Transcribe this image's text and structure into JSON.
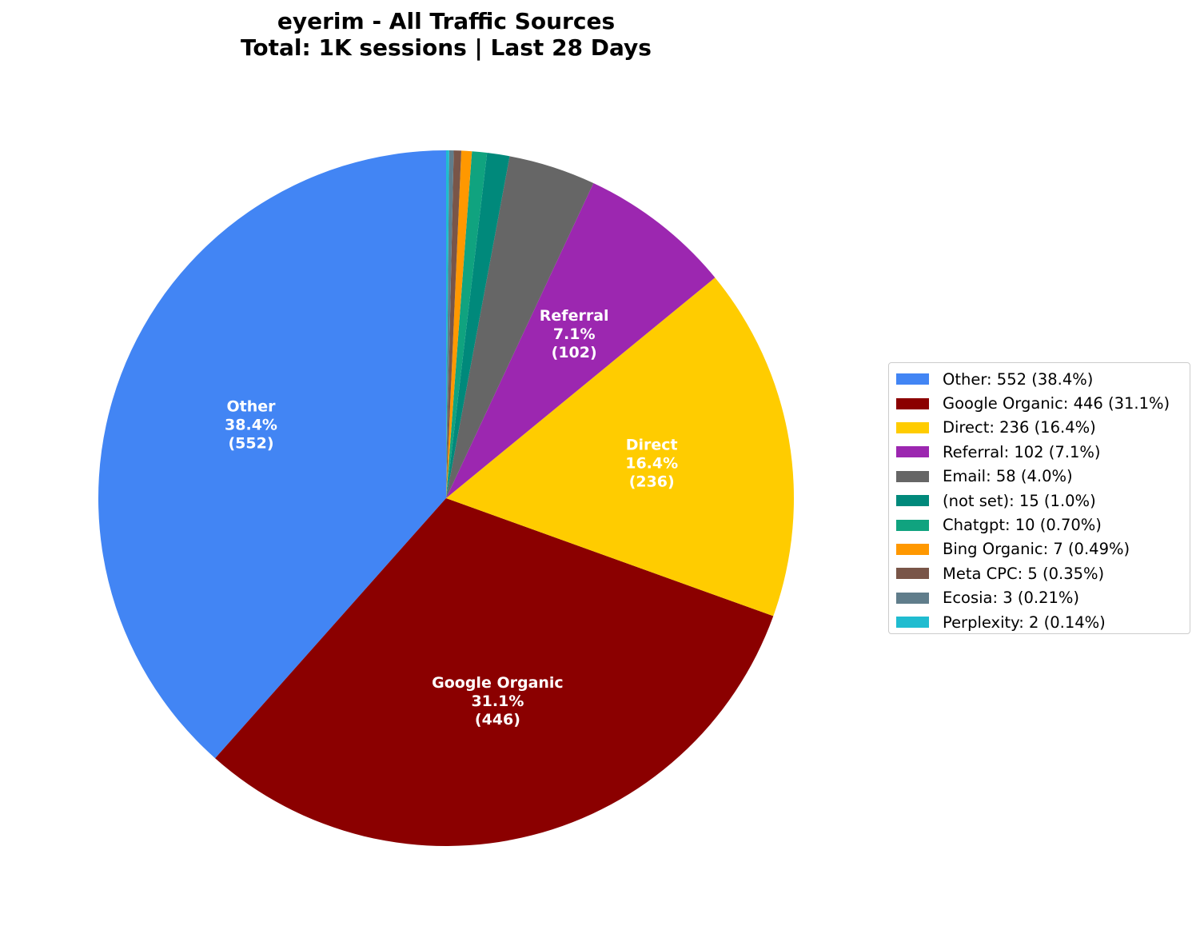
{
  "title": {
    "line1": "eyerim - All Traffic Sources",
    "line2": "Total: 1K sessions | Last 28 Days"
  },
  "chart_data": {
    "type": "pie",
    "title": "eyerim - All Traffic Sources\nTotal: 1K sessions | Last 28 Days",
    "start": "top",
    "direction": "counterclockwise",
    "slices": [
      {
        "name": "Other",
        "value": 552,
        "percent": "38.4%",
        "color": "#4285f4",
        "legend": "Other: 552 (38.4%)",
        "label": [
          "Other",
          "38.4%",
          "(552)"
        ]
      },
      {
        "name": "Google Organic",
        "value": 446,
        "percent": "31.1%",
        "color": "#8b0000",
        "legend": "Google Organic: 446 (31.1%)",
        "label": [
          "Google Organic",
          "31.1%",
          "(446)"
        ]
      },
      {
        "name": "Direct",
        "value": 236,
        "percent": "16.4%",
        "color": "#ffcc00",
        "legend": "Direct: 236 (16.4%)",
        "label": [
          "Direct",
          "16.4%",
          "(236)"
        ]
      },
      {
        "name": "Referral",
        "value": 102,
        "percent": "7.1%",
        "color": "#9c27b0",
        "legend": "Referral: 102 (7.1%)",
        "label": [
          "Referral",
          "7.1%",
          "(102)"
        ]
      },
      {
        "name": "Email",
        "value": 58,
        "percent": "4.0%",
        "color": "#666666",
        "legend": "Email: 58 (4.0%)",
        "label": null
      },
      {
        "name": "(not set)",
        "value": 15,
        "percent": "1.0%",
        "color": "#00897b",
        "legend": "(not set): 15 (1.0%)",
        "label": null
      },
      {
        "name": "Chatgpt",
        "value": 10,
        "percent": "0.70%",
        "color": "#10a37f",
        "legend": "Chatgpt: 10 (0.70%)",
        "label": null
      },
      {
        "name": "Bing Organic",
        "value": 7,
        "percent": "0.49%",
        "color": "#ff9800",
        "legend": "Bing Organic: 7 (0.49%)",
        "label": null
      },
      {
        "name": "Meta CPC",
        "value": 5,
        "percent": "0.35%",
        "color": "#795548",
        "legend": "Meta CPC: 5 (0.35%)",
        "label": null
      },
      {
        "name": "Ecosia",
        "value": 3,
        "percent": "0.21%",
        "color": "#607d8b",
        "legend": "Ecosia: 3 (0.21%)",
        "label": null
      },
      {
        "name": "Perplexity",
        "value": 2,
        "percent": "0.14%",
        "color": "#20bcd0",
        "legend": "Perplexity: 2 (0.14%)",
        "label": null
      }
    ],
    "legend_position": "right"
  }
}
